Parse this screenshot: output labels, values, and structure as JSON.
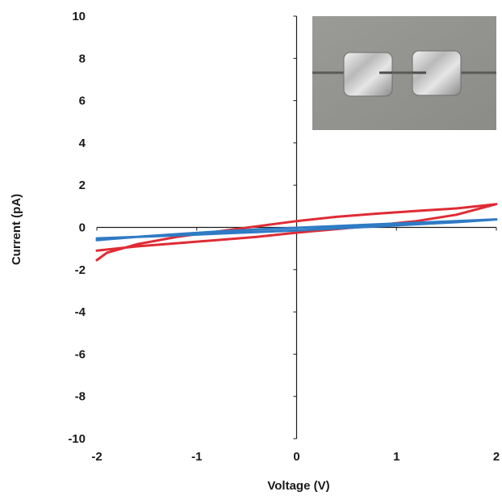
{
  "chart_data": {
    "type": "line",
    "xlabel": "Voltage (V)",
    "ylabel": "Current (pA)",
    "xlim": [
      -2,
      2
    ],
    "ylim": [
      -10,
      10
    ],
    "x_ticks": [
      -2,
      -1,
      0,
      1,
      2
    ],
    "y_ticks": [
      10,
      8,
      6,
      4,
      2,
      0,
      -2,
      -4,
      -6,
      -8,
      -10
    ],
    "grid": false,
    "legend": "none",
    "inset": "photograph of two square metal electrode pads connected by a thin wire",
    "series": [
      {
        "color": "#e02b35",
        "x": [
          -2,
          -1.9,
          -1.6,
          -1.2,
          -0.8,
          -0.4,
          0,
          0.4,
          0.8,
          1.2,
          1.6,
          2,
          1.6,
          1.2,
          0.8,
          0.4,
          0,
          -0.4,
          -0.8,
          -1.2,
          -1.6,
          -2
        ],
        "y": [
          -1.55,
          -1.2,
          -0.8,
          -0.45,
          -0.2,
          0.05,
          0.3,
          0.5,
          0.65,
          0.78,
          0.9,
          1.1,
          0.6,
          0.3,
          0.1,
          -0.08,
          -0.25,
          -0.45,
          -0.6,
          -0.75,
          -0.9,
          -1.1
        ]
      },
      {
        "color": "#2f7bc4",
        "x": [
          -2,
          -1.6,
          -1.2,
          -0.8,
          -0.4,
          0,
          0.4,
          0.8,
          1.2,
          1.6,
          2,
          1.6,
          1.2,
          0.8,
          0.4,
          0,
          -0.4,
          -0.8,
          -1.2,
          -1.6,
          -2
        ],
        "y": [
          -0.6,
          -0.45,
          -0.32,
          -0.2,
          -0.1,
          -0.02,
          0.06,
          0.14,
          0.22,
          0.3,
          0.38,
          0.25,
          0.15,
          0.05,
          -0.05,
          -0.14,
          -0.22,
          -0.3,
          -0.38,
          -0.45,
          -0.52
        ]
      }
    ]
  }
}
